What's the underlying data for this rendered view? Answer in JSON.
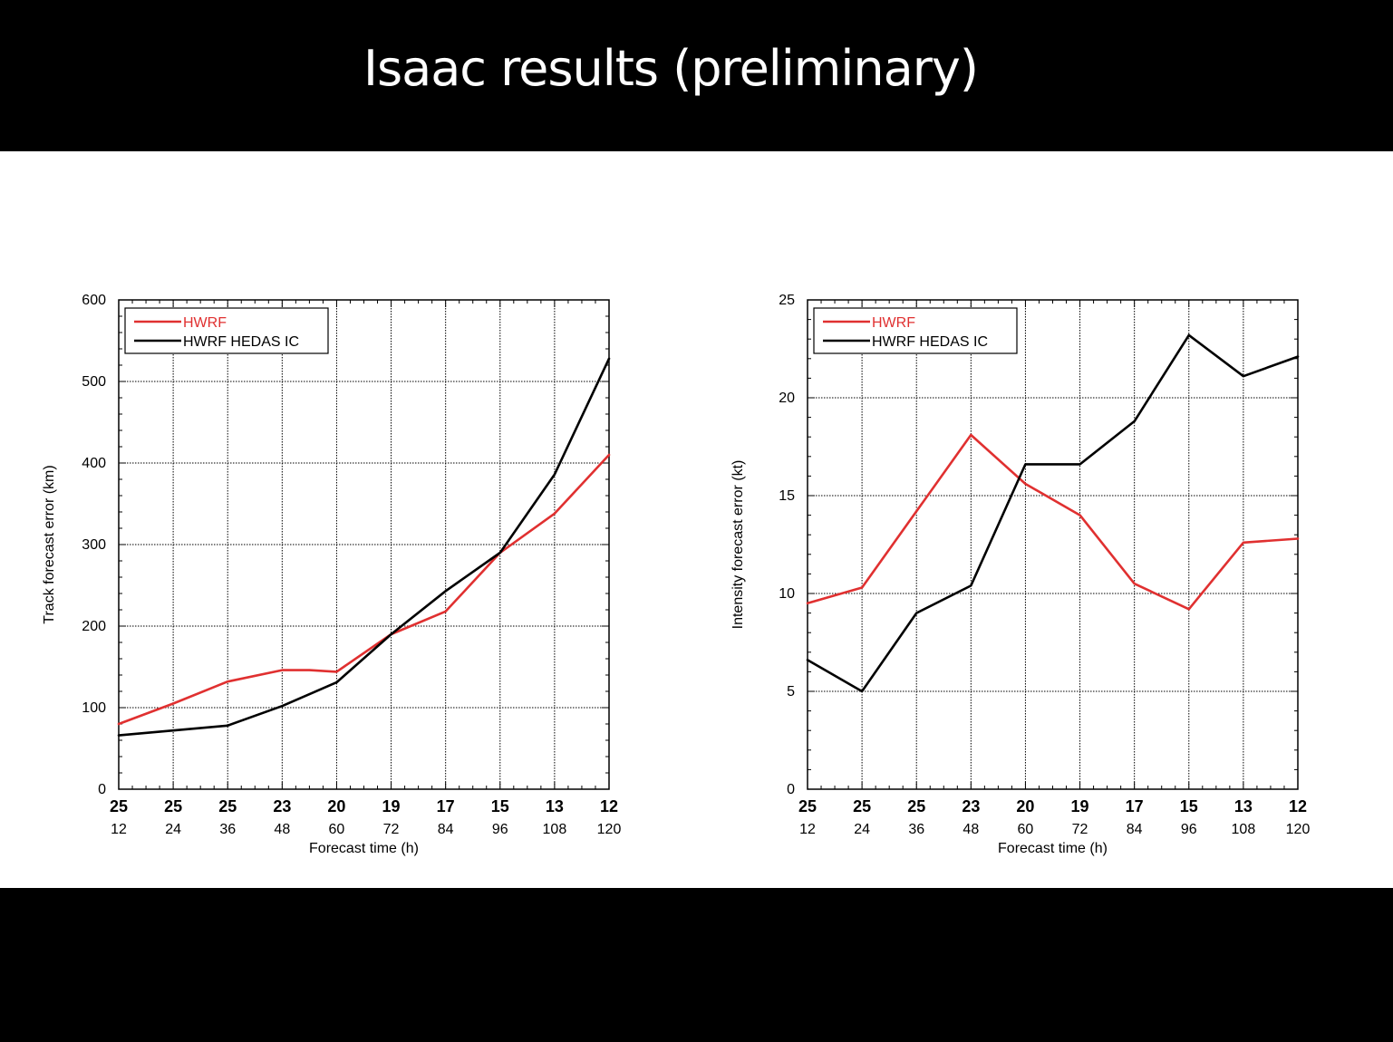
{
  "slide": {
    "title": "Isaac results (preliminary)"
  },
  "colors": {
    "hwrf": "#e03030",
    "hedas": "#000000"
  },
  "chart_data": [
    {
      "type": "line",
      "xlabel": "Forecast time (h)",
      "ylabel": "Track forecast error (km)",
      "x": [
        12,
        24,
        36,
        48,
        60,
        72,
        84,
        96,
        108,
        120
      ],
      "xlim": [
        12,
        120
      ],
      "top_labels": [
        "25",
        "25",
        "25",
        "23",
        "20",
        "19",
        "17",
        "15",
        "13",
        "12"
      ],
      "ylim": [
        0,
        600
      ],
      "yticks": [
        0,
        100,
        200,
        300,
        400,
        500,
        600
      ],
      "grid": true,
      "legend_position": "top-left",
      "series": [
        {
          "name": "HWRF",
          "color": "#e03030",
          "points": [
            [
              12,
              80
            ],
            [
              24,
              105
            ],
            [
              36,
              132
            ],
            [
              48,
              146
            ],
            [
              54,
              146
            ],
            [
              60,
              144
            ],
            [
              72,
              190
            ],
            [
              84,
              218
            ],
            [
              96,
              290
            ],
            [
              108,
              338
            ],
            [
              120,
              410
            ]
          ]
        },
        {
          "name": "HWRF HEDAS IC",
          "color": "#000000",
          "points": [
            [
              12,
              66
            ],
            [
              24,
              72
            ],
            [
              36,
              78
            ],
            [
              48,
              102
            ],
            [
              60,
              131
            ],
            [
              72,
              190
            ],
            [
              84,
              243
            ],
            [
              96,
              290
            ],
            [
              108,
              386
            ],
            [
              120,
              528
            ]
          ]
        }
      ]
    },
    {
      "type": "line",
      "xlabel": "Forecast time (h)",
      "ylabel": "Intensity forecast error (kt)",
      "x": [
        12,
        24,
        36,
        48,
        60,
        72,
        84,
        96,
        108,
        120
      ],
      "xlim": [
        12,
        120
      ],
      "top_labels": [
        "25",
        "25",
        "25",
        "23",
        "20",
        "19",
        "17",
        "15",
        "13",
        "12"
      ],
      "ylim": [
        0,
        25
      ],
      "yticks": [
        0,
        5,
        10,
        15,
        20,
        25
      ],
      "grid": true,
      "legend_position": "top-left",
      "series": [
        {
          "name": "HWRF",
          "color": "#e03030",
          "points": [
            [
              12,
              9.5
            ],
            [
              24,
              10.3
            ],
            [
              36,
              14.2
            ],
            [
              48,
              18.1
            ],
            [
              60,
              15.6
            ],
            [
              72,
              14.0
            ],
            [
              84,
              10.5
            ],
            [
              96,
              9.2
            ],
            [
              108,
              12.6
            ],
            [
              120,
              12.8
            ]
          ]
        },
        {
          "name": "HWRF HEDAS IC",
          "color": "#000000",
          "points": [
            [
              12,
              6.6
            ],
            [
              24,
              5.0
            ],
            [
              36,
              9.0
            ],
            [
              48,
              10.4
            ],
            [
              60,
              16.6
            ],
            [
              72,
              16.6
            ],
            [
              84,
              18.8
            ],
            [
              96,
              23.2
            ],
            [
              108,
              21.1
            ],
            [
              120,
              22.1
            ]
          ]
        }
      ]
    }
  ]
}
